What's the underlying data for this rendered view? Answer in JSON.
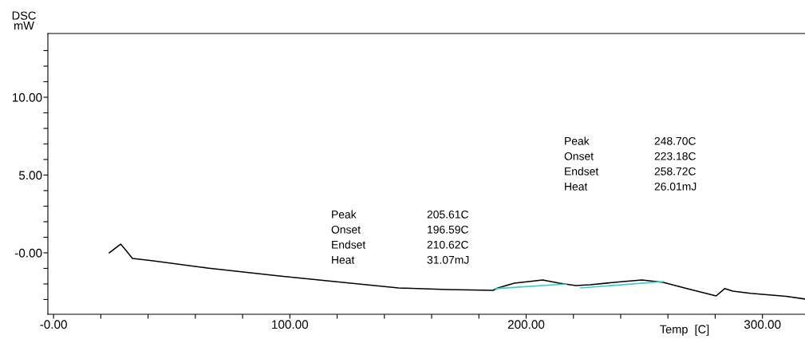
{
  "chart_data": {
    "type": "line",
    "ylabel": "DSC\nmW",
    "xlabel": "Temp  [C]",
    "xlim": [
      -2.4,
      318
    ],
    "ylim": [
      -3.95,
      14.1
    ],
    "xticks": [
      {
        "value": 0,
        "label": "-0.00"
      },
      {
        "value": 20,
        "label": null
      },
      {
        "value": 40,
        "label": null
      },
      {
        "value": 60,
        "label": null
      },
      {
        "value": 80,
        "label": null
      },
      {
        "value": 100,
        "label": "100.00"
      },
      {
        "value": 120,
        "label": null
      },
      {
        "value": 140,
        "label": null
      },
      {
        "value": 160,
        "label": null
      },
      {
        "value": 180,
        "label": null
      },
      {
        "value": 200,
        "label": "200.00"
      },
      {
        "value": 220,
        "label": null
      },
      {
        "value": 240,
        "label": null
      },
      {
        "value": 260,
        "label": null
      },
      {
        "value": 280,
        "label": null
      },
      {
        "value": 300,
        "label": "300.00"
      }
    ],
    "yticks": [
      {
        "value": -3,
        "label": null
      },
      {
        "value": -2,
        "label": null
      },
      {
        "value": -1,
        "label": null
      },
      {
        "value": 0,
        "label": "-0.00"
      },
      {
        "value": 1,
        "label": null
      },
      {
        "value": 2,
        "label": null
      },
      {
        "value": 3,
        "label": null
      },
      {
        "value": 4,
        "label": null
      },
      {
        "value": 5,
        "label": "5.00"
      },
      {
        "value": 6,
        "label": null
      },
      {
        "value": 7,
        "label": null
      },
      {
        "value": 8,
        "label": null
      },
      {
        "value": 9,
        "label": null
      },
      {
        "value": 10,
        "label": "10.00"
      },
      {
        "value": 11,
        "label": null
      },
      {
        "value": 12,
        "label": null
      },
      {
        "value": 13,
        "label": null
      }
    ],
    "grid": false,
    "series": [
      {
        "color": "#000000",
        "x": [
          23.6,
          28.4,
          30.4,
          33.4,
          41.5,
          65,
          95.6,
          119,
          146,
          166.6,
          186,
          188,
          195,
          207,
          214,
          221,
          227,
          241,
          249,
          258,
          268,
          280.4,
          284,
          287.5,
          295,
          310,
          318
        ],
        "values": [
          0,
          0.56,
          0.2,
          -0.36,
          -0.5,
          -0.97,
          -1.49,
          -1.85,
          -2.26,
          -2.36,
          -2.41,
          -2.26,
          -1.95,
          -1.74,
          -1.95,
          -2.1,
          -2.05,
          -1.85,
          -1.74,
          -1.9,
          -2.3,
          -2.77,
          -2.3,
          -2.46,
          -2.6,
          -2.8,
          -2.97
        ]
      },
      {
        "color": "#33cccc",
        "x": [
          187,
          217
        ],
        "values": [
          -2.3,
          -2.0
        ]
      },
      {
        "color": "#33cccc",
        "x": [
          223,
          258
        ],
        "values": [
          -2.26,
          -1.85
        ]
      }
    ],
    "annotations": [
      "Peak",
      "205.61C",
      "Onset",
      "196.59C",
      "Endset",
      "210.62C",
      "Heat",
      "31.07mJ",
      "Peak",
      "248.70C",
      "Onset",
      "223.18C",
      "Endset",
      "258.72C",
      "Heat",
      "26.01mJ"
    ]
  }
}
